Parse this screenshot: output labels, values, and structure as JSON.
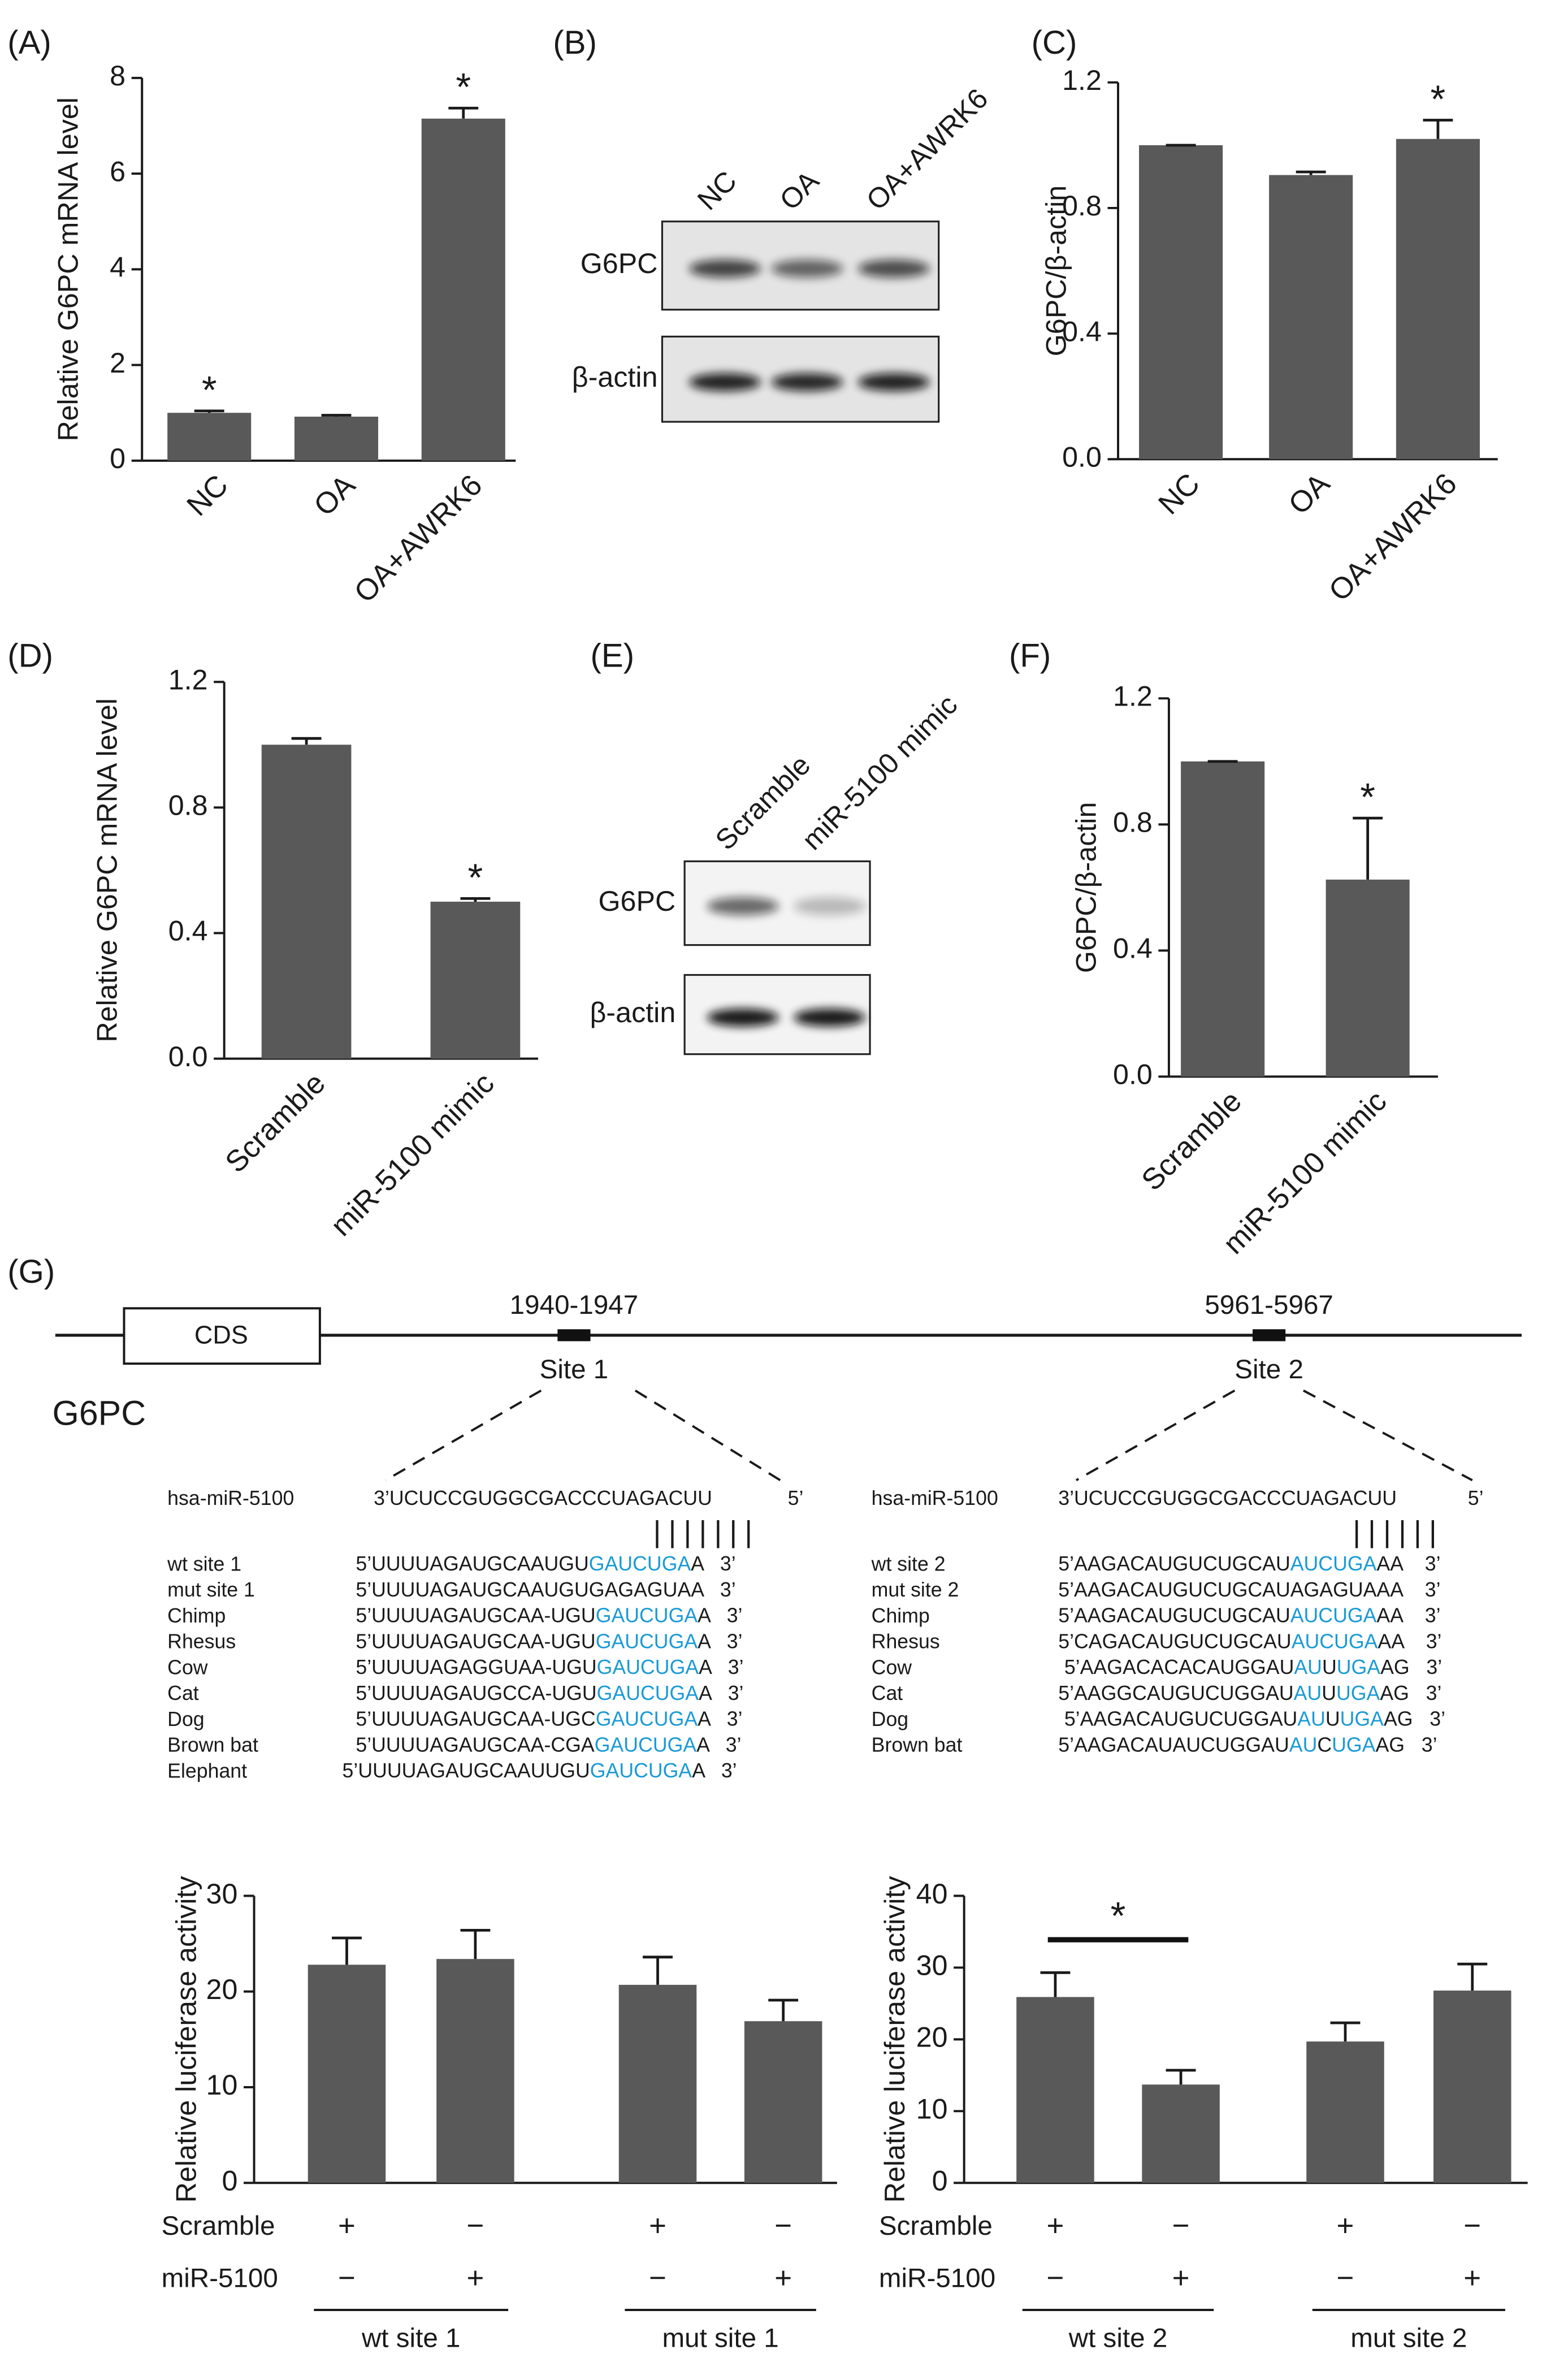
{
  "chart_data": [
    {
      "type": "bar",
      "label": "(A)",
      "ylabel": "Relative G6PC mRNA level",
      "categories": [
        "NC",
        "OA",
        "OA+AWRK6"
      ],
      "values": [
        1.0,
        0.92,
        7.15
      ],
      "errors": [
        0.04,
        0.03,
        0.22
      ],
      "significance": [
        "*",
        null,
        "*"
      ],
      "color": "#595959",
      "ylim": [
        0,
        8
      ],
      "yticks": [
        0,
        2,
        4,
        6,
        8
      ]
    },
    {
      "type": "bar",
      "label": "(C)",
      "ylabel": "G6PC/β-actin",
      "categories": [
        "NC",
        "OA",
        "OA+AWRK6"
      ],
      "values": [
        1.0,
        0.905,
        1.02
      ],
      "errors": [
        0,
        0.01,
        0.06
      ],
      "significance": [
        null,
        null,
        "*"
      ],
      "color": "#595959",
      "ylim": [
        0,
        1.2
      ],
      "yticks": [
        {
          "value": 0,
          "label": "0.0"
        },
        0.4,
        0.8,
        1.2
      ]
    },
    {
      "type": "bar",
      "label": "(D)",
      "ylabel": "Relative G6PC mRNA level",
      "categories": [
        "Scramble",
        "miR-5100 mimic"
      ],
      "values": [
        1.0,
        0.5
      ],
      "errors": [
        0.02,
        0.01
      ],
      "significance": [
        null,
        "*"
      ],
      "color": "#595959",
      "ylim": [
        0,
        1.2
      ],
      "yticks": [
        {
          "value": 0,
          "label": "0.0"
        },
        0.4,
        0.8,
        1.2
      ]
    },
    {
      "type": "bar",
      "label": "(F)",
      "ylabel": "G6PC/β-actin",
      "categories": [
        "Scramble",
        "miR-5100 mimic"
      ],
      "values": [
        1.0,
        0.625
      ],
      "errors": [
        0,
        0.195
      ],
      "significance": [
        null,
        "*"
      ],
      "color": "#595959",
      "ylim": [
        0,
        1.2
      ],
      "yticks": [
        {
          "value": 0,
          "label": "0.0"
        },
        0.4,
        0.8,
        1.2
      ]
    },
    {
      "type": "bar",
      "ylabel": "Relative luciferase activity",
      "values": [
        22.8,
        23.4,
        20.7,
        16.9
      ],
      "errors": [
        2.8,
        3.0,
        2.9,
        2.2
      ],
      "color": "#595959",
      "ylim": [
        0,
        30
      ],
      "yticks": [
        0,
        10,
        20,
        30
      ],
      "rows": [
        {
          "name": "Scramble",
          "values": [
            "+",
            "−",
            "+",
            "−"
          ]
        },
        {
          "name": "miR-5100",
          "values": [
            "−",
            "+",
            "−",
            "+"
          ]
        }
      ],
      "groups": [
        "wt site 1",
        "mut site 1"
      ]
    },
    {
      "type": "bar",
      "ylabel": "Relative luciferase activity",
      "values": [
        25.9,
        13.7,
        19.7,
        26.8
      ],
      "errors": [
        3.4,
        2.0,
        2.6,
        3.7
      ],
      "color": "#595959",
      "ylim": [
        0,
        40
      ],
      "yticks": [
        0,
        10,
        20,
        30,
        40
      ],
      "rows": [
        {
          "name": "Scramble",
          "values": [
            "+",
            "−",
            "+",
            "−"
          ]
        },
        {
          "name": "miR-5100",
          "values": [
            "−",
            "+",
            "−",
            "+"
          ]
        }
      ],
      "groups": [
        "wt site 2",
        "mut site 2"
      ],
      "bracket": {
        "text": "*",
        "bars": [
          0,
          1
        ]
      }
    }
  ],
  "blots": [
    {
      "label": "(B)",
      "lanes": [
        "NC",
        "OA",
        "OA+AWRK6"
      ],
      "rows": [
        "G6PC",
        "β-actin"
      ]
    },
    {
      "label": "(E)",
      "lanes": [
        "Scramble",
        "miR-5100 mimic"
      ],
      "rows": [
        "G6PC",
        "β-actin"
      ]
    }
  ],
  "diagram": {
    "label": "(G)",
    "gene": "G6PC",
    "cds": "CDS",
    "sites": [
      {
        "position": "1940-1947",
        "name": "Site 1",
        "mirna": {
          "name": "hsa-miR-5100",
          "seq": "3’UCUCCGUGGCGACCCUAGACUU",
          "end": "5’"
        },
        "pairing": "|||||||",
        "rows": [
          {
            "name": "wt site 1",
            "segments": [
              "5’UUUUAGAUGCAAUGU",
              "GAUCUGA",
              "A   3’"
            ]
          },
          {
            "name": "mut site 1",
            "segments": [
              "5’UUUUAGAUGCAAUGUGAGAGUAA   3’"
            ]
          },
          {
            "name": "Chimp",
            "segments": [
              "5’UUUUAGAUGCAA-UGU",
              "GAUCUGA",
              "A   3’"
            ]
          },
          {
            "name": "Rhesus",
            "segments": [
              "5’UUUUAGAUGCAA-UGU",
              "GAUCUGA",
              "A   3’"
            ]
          },
          {
            "name": "Cow",
            "segments": [
              "5’UUUUAGAGGUAA-UGU",
              "GAUCUGA",
              "A   3’"
            ]
          },
          {
            "name": "Cat",
            "segments": [
              "5’UUUUAGAUGCCA-UGU",
              "GAUCUGA",
              "A   3’"
            ]
          },
          {
            "name": "Dog",
            "segments": [
              "5’UUUUAGAUGCAA-UGC",
              "GAUCUGA",
              "A   3’"
            ]
          },
          {
            "name": "Brown bat",
            "segments": [
              "5’UUUUAGAUGCAA-CGA",
              "GAUCUGA",
              "A   3’"
            ]
          },
          {
            "name": "Elephant",
            "segments": [
              "5’UUUUAGAUGCAAUUGU",
              "GAUCUGA",
              "A   3’"
            ]
          }
        ]
      },
      {
        "position": "5961-5967",
        "name": "Site 2",
        "mirna": {
          "name": "hsa-miR-5100",
          "seq": "3’UCUCCGUGGCGACCCUAGACUU",
          "end": "5’"
        },
        "pairing": "||||||",
        "rows": [
          {
            "name": "wt site 2",
            "segments": [
              "5’AAGACAUGUCUGCAU",
              "AUCUGA",
              "AA    3’"
            ]
          },
          {
            "name": "mut site 2",
            "segments": [
              "5’AAGACAUGUCUGCAUAGAGUAAA    3’"
            ]
          },
          {
            "name": "Chimp",
            "segments": [
              "5’AAGACAUGUCUGCAU",
              "AUCUGA",
              "AA    3’"
            ]
          },
          {
            "name": "Rhesus",
            "segments": [
              "5’CAGACAUGUCUGCAU",
              "AUCUGA",
              "AA    3’"
            ]
          },
          {
            "name": "Cow",
            "segments": [
              "5’AAGACACACAUGGAU",
              "AU",
              "U",
              "UGA",
              "AG   3’"
            ]
          },
          {
            "name": "Cat",
            "segments": [
              "5’AAGGCAUGUCUGGAU",
              "AU",
              "U",
              "UGA",
              "AG   3’"
            ]
          },
          {
            "name": "Dog",
            "segments": [
              "5’AAGACAUGUCUGGAU",
              "AU",
              "U",
              "UGA",
              "AG   3’"
            ]
          },
          {
            "name": "Brown bat",
            "segments": [
              "5’AAGACAUAUCUGGAU",
              "AU",
              "C",
              "UGA",
              "AG   3’"
            ]
          }
        ]
      }
    ]
  }
}
